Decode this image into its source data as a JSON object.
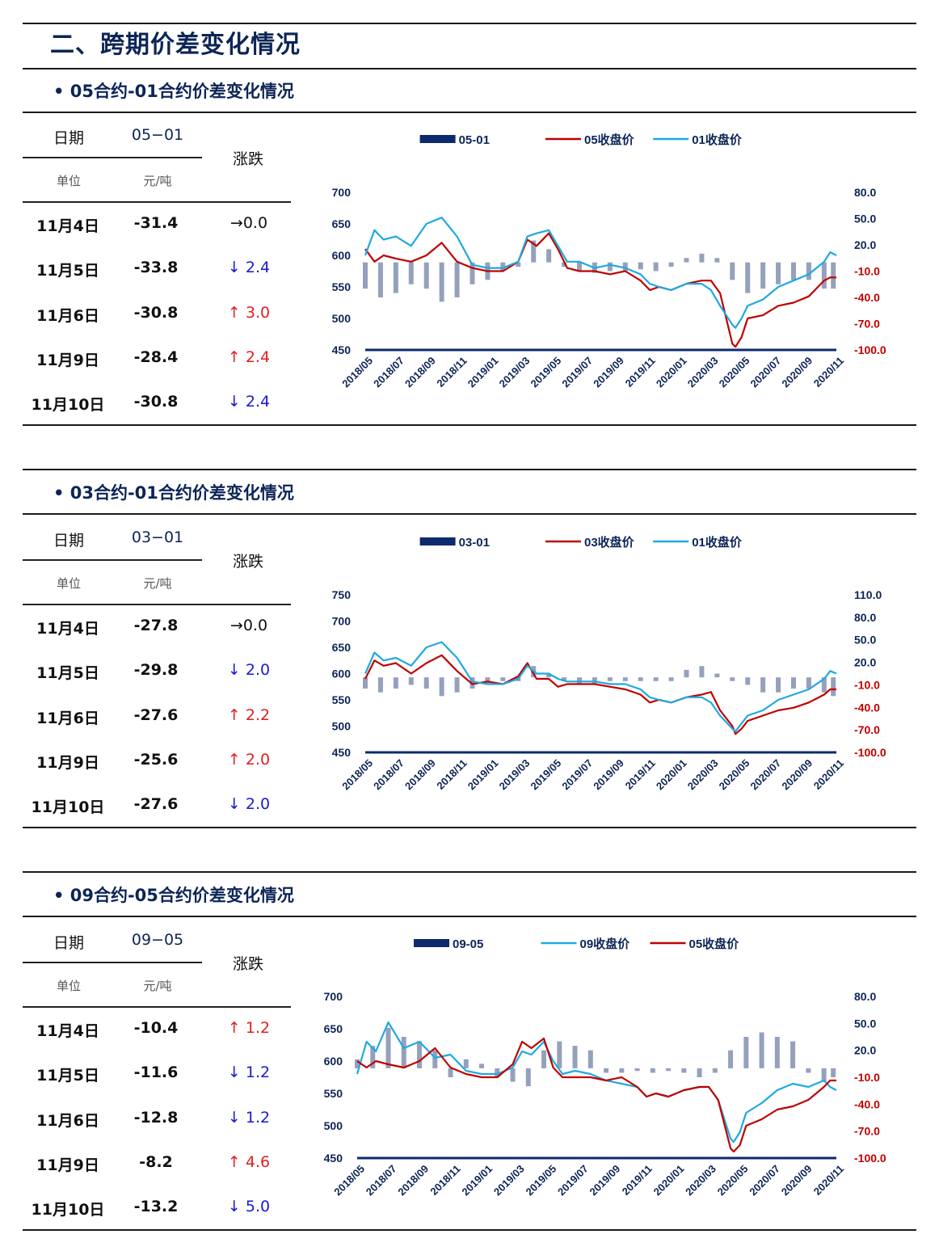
{
  "page_title": "二、跨期价差变化情况",
  "sections": [
    {
      "title": "• 05合约-01合约价差变化情况",
      "table": {
        "col_date": "日期",
        "col_code": "05−01",
        "col_chg": "涨跌",
        "unit_label": "单位",
        "unit_value": "元/吨",
        "rows": [
          {
            "date": "11月4日",
            "value": "-31.4",
            "chg": "→0.0",
            "dir": "flat"
          },
          {
            "date": "11月5日",
            "value": "-33.8",
            "chg": "↓ 2.4",
            "dir": "down"
          },
          {
            "date": "11月6日",
            "value": "-30.8",
            "chg": "↑ 3.0",
            "dir": "up"
          },
          {
            "date": "11月9日",
            "value": "-28.4",
            "chg": "↑ 2.4",
            "dir": "up"
          },
          {
            "date": "11月10日",
            "value": "-30.8",
            "chg": "↓ 2.4",
            "dir": "down"
          }
        ]
      }
    },
    {
      "title": "• 03合约-01合约价差变化情况",
      "table": {
        "col_date": "日期",
        "col_code": "03−01",
        "col_chg": "涨跌",
        "unit_label": "单位",
        "unit_value": "元/吨",
        "rows": [
          {
            "date": "11月4日",
            "value": "-27.8",
            "chg": "→0.0",
            "dir": "flat"
          },
          {
            "date": "11月5日",
            "value": "-29.8",
            "chg": "↓ 2.0",
            "dir": "down"
          },
          {
            "date": "11月6日",
            "value": "-27.6",
            "chg": "↑ 2.2",
            "dir": "up"
          },
          {
            "date": "11月9日",
            "value": "-25.6",
            "chg": "↑ 2.0",
            "dir": "up"
          },
          {
            "date": "11月10日",
            "value": "-27.6",
            "chg": "↓ 2.0",
            "dir": "down"
          }
        ]
      }
    },
    {
      "title": "• 09合约-05合约价差变化情况",
      "table": {
        "col_date": "日期",
        "col_code": "09−05",
        "col_chg": "涨跌",
        "unit_label": "单位",
        "unit_value": "元/吨",
        "rows": [
          {
            "date": "11月4日",
            "value": "-10.4",
            "chg": "↑ 1.2",
            "dir": "up"
          },
          {
            "date": "11月5日",
            "value": "-11.6",
            "chg": "↓ 1.2",
            "dir": "down"
          },
          {
            "date": "11月6日",
            "value": "-12.8",
            "chg": "↓ 1.2",
            "dir": "down"
          },
          {
            "date": "11月9日",
            "value": "-8.2",
            "chg": "↑ 4.6",
            "dir": "up"
          },
          {
            "date": "11月10日",
            "value": "-13.2",
            "chg": "↓ 5.0",
            "dir": "down"
          }
        ]
      }
    }
  ],
  "colors": {
    "spread_bar": "#8391b0",
    "legend_bar": "#0d2a6e",
    "red_line": "#c00000",
    "blue_line": "#1fa9e1",
    "axis_left": "#0d2556",
    "positive_tick": "#0d2556",
    "negative_tick": "#c00000",
    "down": "#1a1ad0",
    "up": "#e02020"
  },
  "chart_data": [
    {
      "type": "line",
      "legend": [
        "05-01",
        "05收盘价",
        "01收盘价"
      ],
      "x_ticks": [
        "2018/05",
        "2018/07",
        "2018/09",
        "2018/11",
        "2019/01",
        "2019/03",
        "2019/05",
        "2019/07",
        "2019/09",
        "2019/11",
        "2020/01",
        "2020/03",
        "2020/05",
        "2020/07",
        "2020/09",
        "2020/11"
      ],
      "left_axis": {
        "ticks": [
          "700",
          "650",
          "600",
          "550",
          "500",
          "450"
        ],
        "min": 450,
        "max": 700
      },
      "right_axis": {
        "ticks": [
          "80.0",
          "50.0",
          "20.0",
          "-10.0",
          "-40.0",
          "-70.0",
          "-100.0"
        ],
        "min": -100,
        "max": 80
      },
      "series": [
        {
          "name": "05-01",
          "kind": "bar",
          "axis": "right",
          "color": "#8391b0",
          "x": [
            0,
            0.5,
            1,
            1.5,
            2,
            2.5,
            3,
            3.5,
            4,
            4.5,
            5,
            5.5,
            6,
            6.5,
            7,
            7.5,
            8,
            8.5,
            9,
            9.5,
            10,
            10.5,
            11,
            11.5,
            12,
            12.5,
            13,
            13.5,
            14,
            14.5,
            15,
            15.3
          ],
          "values": [
            -30,
            -40,
            -35,
            -25,
            -30,
            -45,
            -40,
            -25,
            -20,
            -10,
            -5,
            25,
            15,
            -5,
            -10,
            -12,
            -10,
            -10,
            -8,
            -10,
            -5,
            5,
            10,
            5,
            -20,
            -35,
            -30,
            -25,
            -20,
            -20,
            -30,
            -30
          ]
        },
        {
          "name": "05收盘价",
          "kind": "line",
          "axis": "left",
          "color": "#c00000",
          "x": [
            0,
            0.3,
            0.6,
            1,
            1.5,
            2,
            2.5,
            3,
            3.5,
            4,
            4.5,
            5,
            5.3,
            5.6,
            6,
            6.3,
            6.6,
            7,
            7.5,
            8,
            8.5,
            9,
            9.3,
            9.6,
            10,
            10.5,
            11,
            11.3,
            11.6,
            12,
            12.1,
            12.3,
            12.5,
            13,
            13.5,
            14,
            14.5,
            15,
            15.2,
            15.4
          ],
          "values": [
            610,
            590,
            600,
            595,
            590,
            600,
            620,
            590,
            580,
            575,
            575,
            590,
            625,
            615,
            635,
            610,
            580,
            575,
            575,
            570,
            575,
            560,
            545,
            550,
            545,
            555,
            560,
            560,
            540,
            460,
            455,
            470,
            500,
            505,
            520,
            525,
            535,
            560,
            565,
            565
          ]
        },
        {
          "name": "01收盘价",
          "kind": "line",
          "axis": "left",
          "color": "#1fa9e1",
          "x": [
            0,
            0.3,
            0.6,
            1,
            1.5,
            2,
            2.5,
            3,
            3.5,
            4,
            4.5,
            5,
            5.3,
            5.6,
            6,
            6.3,
            6.6,
            7,
            7.5,
            8,
            8.5,
            9,
            9.3,
            9.6,
            10,
            10.5,
            11,
            11.3,
            11.6,
            12,
            12.1,
            12.3,
            12.5,
            13,
            13.5,
            14,
            14.5,
            15,
            15.2,
            15.4
          ],
          "values": [
            600,
            640,
            625,
            630,
            615,
            650,
            660,
            630,
            585,
            580,
            580,
            590,
            630,
            635,
            640,
            615,
            590,
            590,
            580,
            585,
            580,
            570,
            555,
            550,
            545,
            555,
            555,
            545,
            520,
            490,
            485,
            500,
            520,
            530,
            550,
            560,
            570,
            590,
            605,
            600
          ]
        }
      ]
    },
    {
      "type": "line",
      "legend": [
        "03-01",
        "03收盘价",
        "01收盘价"
      ],
      "x_ticks": [
        "2018/05",
        "2018/07",
        "2018/09",
        "2018/11",
        "2019/01",
        "2019/03",
        "2019/05",
        "2019/07",
        "2019/09",
        "2019/11",
        "2020/01",
        "2020/03",
        "2020/05",
        "2020/07",
        "2020/09",
        "2020/11"
      ],
      "left_axis": {
        "ticks": [
          "750",
          "700",
          "650",
          "600",
          "550",
          "500",
          "450"
        ],
        "min": 450,
        "max": 750
      },
      "right_axis": {
        "ticks": [
          "110.0",
          "80.0",
          "50.0",
          "20.0",
          "-10.0",
          "-40.0",
          "-70.0",
          "-100.0"
        ],
        "min": -100,
        "max": 110
      },
      "series": [
        {
          "name": "03-01",
          "kind": "bar",
          "axis": "right",
          "color": "#8391b0",
          "x": [
            0,
            0.5,
            1,
            1.5,
            2,
            2.5,
            3,
            3.5,
            4,
            4.5,
            5,
            5.5,
            6,
            6.5,
            7,
            7.5,
            8,
            8.5,
            9,
            9.5,
            10,
            10.5,
            11,
            11.5,
            12,
            12.5,
            13,
            13.5,
            14,
            14.5,
            15,
            15.3
          ],
          "values": [
            -15,
            -20,
            -15,
            -10,
            -15,
            -25,
            -20,
            -15,
            -10,
            -5,
            -5,
            15,
            5,
            -5,
            -8,
            -8,
            -5,
            -5,
            -5,
            -5,
            -5,
            10,
            15,
            5,
            -5,
            -10,
            -20,
            -20,
            -15,
            -15,
            -20,
            -25
          ]
        },
        {
          "name": "03收盘价",
          "kind": "line",
          "axis": "left",
          "color": "#c00000",
          "x": [
            0,
            0.3,
            0.6,
            1,
            1.5,
            2,
            2.5,
            3,
            3.5,
            4,
            4.5,
            5,
            5.3,
            5.6,
            6,
            6.3,
            6.6,
            7,
            7.5,
            8,
            8.5,
            9,
            9.3,
            9.6,
            10,
            10.5,
            11,
            11.3,
            11.6,
            12,
            12.1,
            12.3,
            12.5,
            13,
            13.5,
            14,
            14.5,
            15,
            15.2,
            15.4
          ],
          "values": [
            590,
            625,
            615,
            620,
            600,
            620,
            635,
            605,
            580,
            585,
            580,
            595,
            620,
            590,
            590,
            575,
            580,
            580,
            580,
            575,
            570,
            560,
            545,
            550,
            545,
            555,
            560,
            565,
            530,
            500,
            485,
            495,
            510,
            520,
            530,
            535,
            545,
            560,
            570,
            570
          ]
        },
        {
          "name": "01收盘价",
          "kind": "line",
          "axis": "left",
          "color": "#1fa9e1",
          "x": [
            0,
            0.3,
            0.6,
            1,
            1.5,
            2,
            2.5,
            3,
            3.5,
            4,
            4.5,
            5,
            5.3,
            5.6,
            6,
            6.3,
            6.6,
            7,
            7.5,
            8,
            8.5,
            9,
            9.3,
            9.6,
            10,
            10.5,
            11,
            11.3,
            11.6,
            12,
            12.1,
            12.3,
            12.5,
            13,
            13.5,
            14,
            14.5,
            15,
            15.2,
            15.4
          ],
          "values": [
            600,
            640,
            625,
            630,
            615,
            650,
            660,
            630,
            585,
            580,
            580,
            590,
            615,
            600,
            600,
            590,
            585,
            585,
            585,
            580,
            580,
            570,
            555,
            550,
            545,
            555,
            555,
            545,
            520,
            495,
            490,
            505,
            520,
            530,
            550,
            560,
            570,
            590,
            605,
            600
          ]
        }
      ]
    },
    {
      "type": "line",
      "legend": [
        "09-05",
        "09收盘价",
        "05收盘价"
      ],
      "x_ticks": [
        "2018/05",
        "2018/07",
        "2018/09",
        "2018/11",
        "2019/01",
        "2019/03",
        "2019/05",
        "2019/07",
        "2019/09",
        "2019/11",
        "2020/01",
        "2020/03",
        "2020/05",
        "2020/07",
        "2020/09",
        "2020/11"
      ],
      "left_axis": {
        "ticks": [
          "700",
          "650",
          "600",
          "550",
          "500",
          "450"
        ],
        "min": 450,
        "max": 700
      },
      "right_axis": {
        "ticks": [
          "80.0",
          "50.0",
          "20.0",
          "-10.0",
          "-40.0",
          "-70.0",
          "-100.0"
        ],
        "min": -100,
        "max": 80
      },
      "series": [
        {
          "name": "09-05",
          "kind": "bar",
          "axis": "right",
          "color": "#8391b0",
          "x": [
            0,
            0.5,
            1,
            1.5,
            2,
            2.5,
            3,
            3.5,
            4,
            4.5,
            5,
            5.5,
            6,
            6.5,
            7,
            7.5,
            8,
            8.5,
            9,
            9.5,
            10,
            10.5,
            11,
            11.5,
            12,
            12.5,
            13,
            13.5,
            14,
            14.5,
            15,
            15.3
          ],
          "values": [
            10,
            25,
            45,
            35,
            30,
            20,
            -10,
            10,
            5,
            -10,
            -15,
            -20,
            20,
            30,
            25,
            20,
            -5,
            -5,
            -3,
            -5,
            -3,
            -5,
            -10,
            -5,
            20,
            35,
            40,
            35,
            30,
            -5,
            -15,
            -10
          ]
        },
        {
          "name": "09收盘价",
          "kind": "line",
          "axis": "left",
          "color": "#1fa9e1",
          "x": [
            0,
            0.3,
            0.6,
            1,
            1.5,
            2,
            2.5,
            3,
            3.5,
            4,
            4.5,
            5,
            5.3,
            5.6,
            6,
            6.3,
            6.6,
            7,
            7.5,
            8,
            8.5,
            9,
            9.3,
            9.6,
            10,
            10.5,
            11,
            11.3,
            11.6,
            12,
            12.1,
            12.3,
            12.5,
            13,
            13.5,
            14,
            14.5,
            15,
            15.2,
            15.4
          ],
          "values": [
            580,
            630,
            615,
            660,
            620,
            630,
            605,
            610,
            585,
            580,
            580,
            590,
            615,
            610,
            630,
            600,
            580,
            585,
            580,
            570,
            565,
            560,
            545,
            550,
            545,
            555,
            560,
            560,
            540,
            480,
            475,
            490,
            520,
            535,
            555,
            565,
            560,
            570,
            560,
            555
          ]
        },
        {
          "name": "05收盘价",
          "kind": "line",
          "axis": "left",
          "color": "#c00000",
          "x": [
            0,
            0.3,
            0.6,
            1,
            1.5,
            2,
            2.5,
            3,
            3.5,
            4,
            4.5,
            5,
            5.3,
            5.6,
            6,
            6.3,
            6.6,
            7,
            7.5,
            8,
            8.5,
            9,
            9.3,
            9.6,
            10,
            10.5,
            11,
            11.3,
            11.6,
            12,
            12.1,
            12.3,
            12.5,
            13,
            13.5,
            14,
            14.5,
            15,
            15.2,
            15.4
          ],
          "values": [
            600,
            590,
            600,
            595,
            590,
            600,
            620,
            590,
            580,
            575,
            575,
            595,
            630,
            620,
            635,
            590,
            575,
            575,
            575,
            570,
            575,
            560,
            545,
            550,
            545,
            555,
            560,
            560,
            540,
            465,
            460,
            470,
            500,
            510,
            525,
            530,
            540,
            560,
            570,
            570
          ]
        }
      ]
    }
  ]
}
